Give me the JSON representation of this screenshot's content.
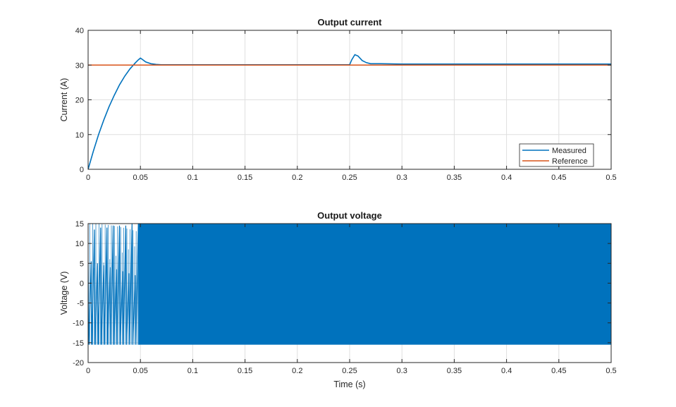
{
  "chart_data": [
    {
      "type": "line",
      "title": "Output current",
      "xlabel": "",
      "ylabel": "Current (A)",
      "xlim": [
        0,
        0.5
      ],
      "ylim": [
        0,
        40
      ],
      "xticks": [
        "0",
        "0.05",
        "0.1",
        "0.15",
        "0.2",
        "0.25",
        "0.3",
        "0.35",
        "0.4",
        "0.45",
        "0.5"
      ],
      "yticks": [
        "0",
        "10",
        "20",
        "30",
        "40"
      ],
      "grid": true,
      "legend_position": "bottom-right",
      "series": [
        {
          "name": "Measured",
          "color": "#0072BD",
          "x": [
            0,
            0.005,
            0.01,
            0.015,
            0.02,
            0.025,
            0.03,
            0.035,
            0.04,
            0.045,
            0.048,
            0.05,
            0.052,
            0.055,
            0.06,
            0.065,
            0.07,
            0.08,
            0.1,
            0.15,
            0.2,
            0.25,
            0.252,
            0.255,
            0.258,
            0.262,
            0.266,
            0.27,
            0.275,
            0.28,
            0.3,
            0.35,
            0.4,
            0.45,
            0.5
          ],
          "y": [
            0,
            5.2,
            10.0,
            14.2,
            18.0,
            21.3,
            24.3,
            26.8,
            28.9,
            30.6,
            31.5,
            32.0,
            31.6,
            30.9,
            30.4,
            30.2,
            30.1,
            30.1,
            30.1,
            30.1,
            30.1,
            30.1,
            31.5,
            33.0,
            32.6,
            31.3,
            30.7,
            30.4,
            30.4,
            30.4,
            30.3,
            30.3,
            30.3,
            30.3,
            30.3
          ]
        },
        {
          "name": "Reference",
          "color": "#D95319",
          "x": [
            0,
            0.5
          ],
          "y": [
            30,
            30
          ]
        }
      ]
    },
    {
      "type": "line",
      "title": "Output voltage",
      "xlabel": "Time (s)",
      "ylabel": "Voltage (V)",
      "xlim": [
        0,
        0.5
      ],
      "ylim": [
        -20,
        15
      ],
      "xticks": [
        "0",
        "0.05",
        "0.1",
        "0.15",
        "0.2",
        "0.25",
        "0.3",
        "0.35",
        "0.4",
        "0.45",
        "0.5"
      ],
      "yticks": [
        "-20",
        "-15",
        "-10",
        "-5",
        "0",
        "5",
        "10",
        "15"
      ],
      "grid": true,
      "series": [
        {
          "color": "#0072BD",
          "switching_high": 15,
          "switching_low": -15.5,
          "x_end": 0.5,
          "startup_end": 0.048,
          "startup_x": [
            0,
            0.003,
            0.006,
            0.009,
            0.012,
            0.015,
            0.018,
            0.021,
            0.024,
            0.027,
            0.03,
            0.033,
            0.036,
            0.039,
            0.042,
            0.045,
            0.048
          ],
          "startup_peak": [
            5,
            5.5,
            13.5,
            5,
            14,
            4.5,
            14,
            4,
            14.5,
            3.5,
            14.5,
            3,
            14.5,
            2.5,
            15,
            2,
            15
          ]
        }
      ]
    }
  ]
}
